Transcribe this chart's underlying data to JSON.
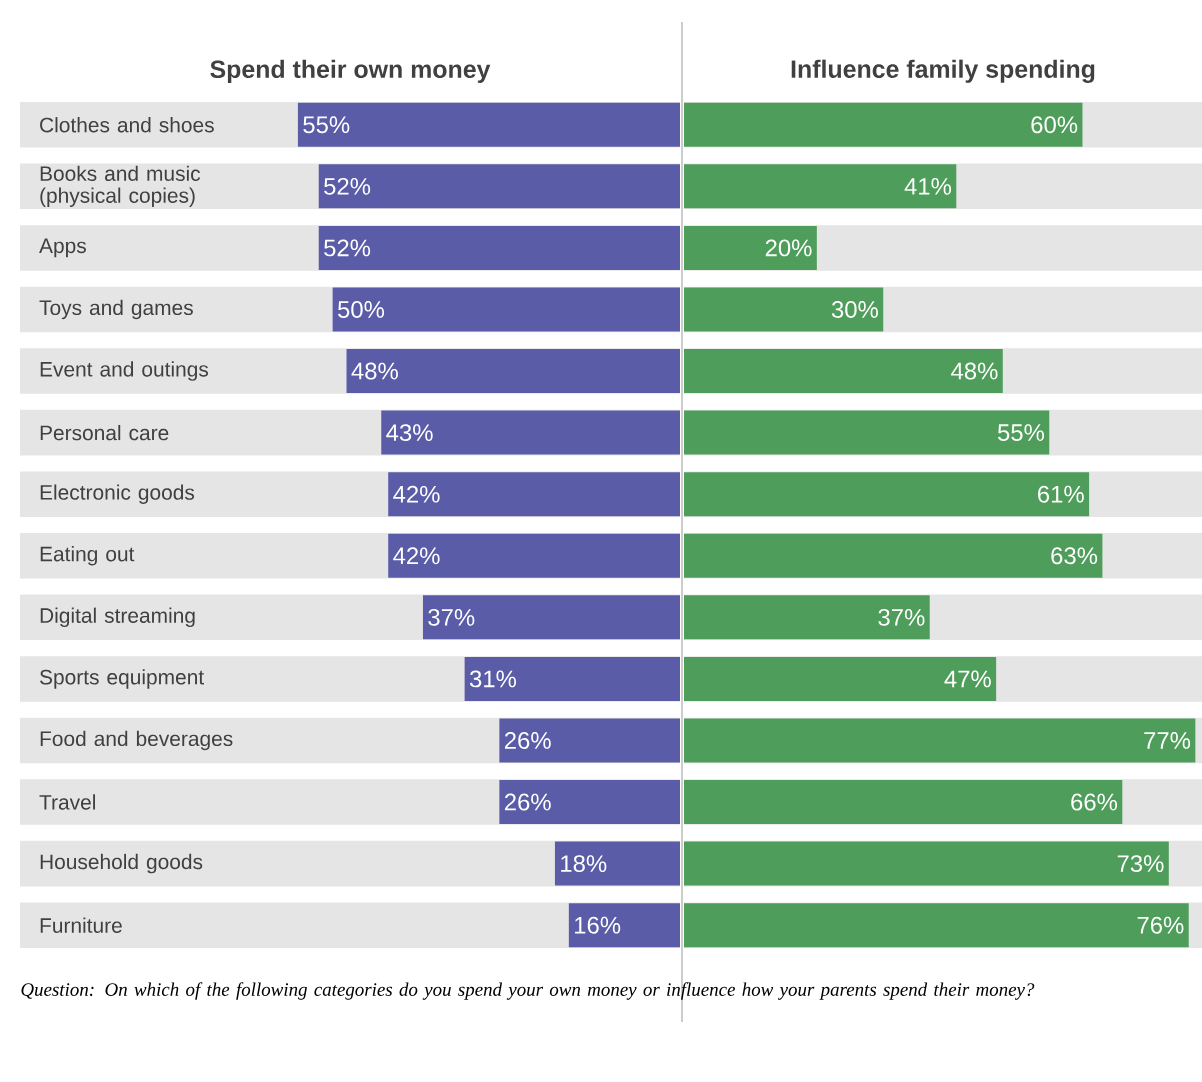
{
  "chart_data": [
    {
      "type": "bar",
      "orientation": "horizontal",
      "title": "Spend their own money",
      "categories": [
        "Clothes and shoes",
        "Books and music (physical copies)",
        "Apps",
        "Toys and games",
        "Event and outings",
        "Personal care",
        "Electronic goods",
        "Eating out",
        "Digital streaming",
        "Sports equipment",
        "Food and beverages",
        "Travel",
        "Household goods",
        "Furniture"
      ],
      "series": [
        {
          "color": "#5a5ca8",
          "values": [
            55,
            52,
            52,
            50,
            48,
            43,
            42,
            42,
            37,
            31,
            26,
            26,
            18,
            16
          ],
          "value_labels": [
            "55%",
            "52%",
            "52%",
            "50%",
            "48%",
            "43%",
            "42%",
            "42%",
            "37%",
            "31%",
            "26%",
            "26%",
            "18%",
            "16%"
          ]
        }
      ],
      "xlim": [
        95,
        0
      ],
      "tick_labels": "y",
      "annotations": [
        "Question: On which of the following categories do you spend your own money or influence how your parents spend their money?"
      ]
    },
    {
      "type": "bar",
      "orientation": "horizontal",
      "title": "Influence family spending",
      "categories": [
        null,
        null,
        null,
        null,
        null,
        null,
        null,
        null,
        null,
        null,
        null,
        null,
        null,
        null
      ],
      "series": [
        {
          "color": "#4e9d5a",
          "values": [
            60,
            41,
            20,
            30,
            48,
            55,
            61,
            63,
            37,
            47,
            77,
            66,
            73,
            76
          ],
          "value_labels": [
            "60%",
            "41%",
            "20%",
            "30%",
            "48%",
            "55%",
            "61%",
            "63%",
            "37%",
            "47%",
            "77%",
            "66%",
            "73%",
            "76%"
          ]
        }
      ],
      "xlim": [
        0,
        78
      ],
      "tick_labels": false
    }
  ]
}
